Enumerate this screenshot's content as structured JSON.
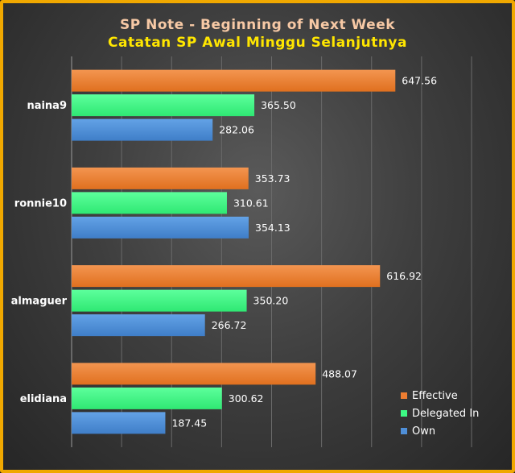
{
  "chart_data": {
    "type": "bar",
    "orientation": "horizontal",
    "title": "SP Note - Beginning of Next Week",
    "subtitle": "Catatan SP Awal Minggu Selanjutnya",
    "categories": [
      "naina9",
      "ronnie10",
      "almaguer",
      "elidiana"
    ],
    "series": [
      {
        "name": "Effective",
        "color": "#ed7d31",
        "values": [
          647.56,
          353.73,
          616.92,
          488.07
        ]
      },
      {
        "name": "Delegated In",
        "color": "#3dfa84",
        "values": [
          365.5,
          310.61,
          350.2,
          300.62
        ]
      },
      {
        "name": "Own",
        "color": "#4f8fd8",
        "values": [
          282.06,
          354.13,
          266.72,
          187.45
        ]
      }
    ],
    "value_labels": [
      [
        "647.56",
        "365.50",
        "282.06"
      ],
      [
        "353.73",
        "310.61",
        "354.13"
      ],
      [
        "616.92",
        "350.20",
        "266.72"
      ],
      [
        "488.07",
        "300.62",
        "187.45"
      ]
    ],
    "xlim": [
      0,
      800
    ],
    "grid": true,
    "legend_position": "bottom-right",
    "xlabel": "",
    "ylabel": ""
  }
}
